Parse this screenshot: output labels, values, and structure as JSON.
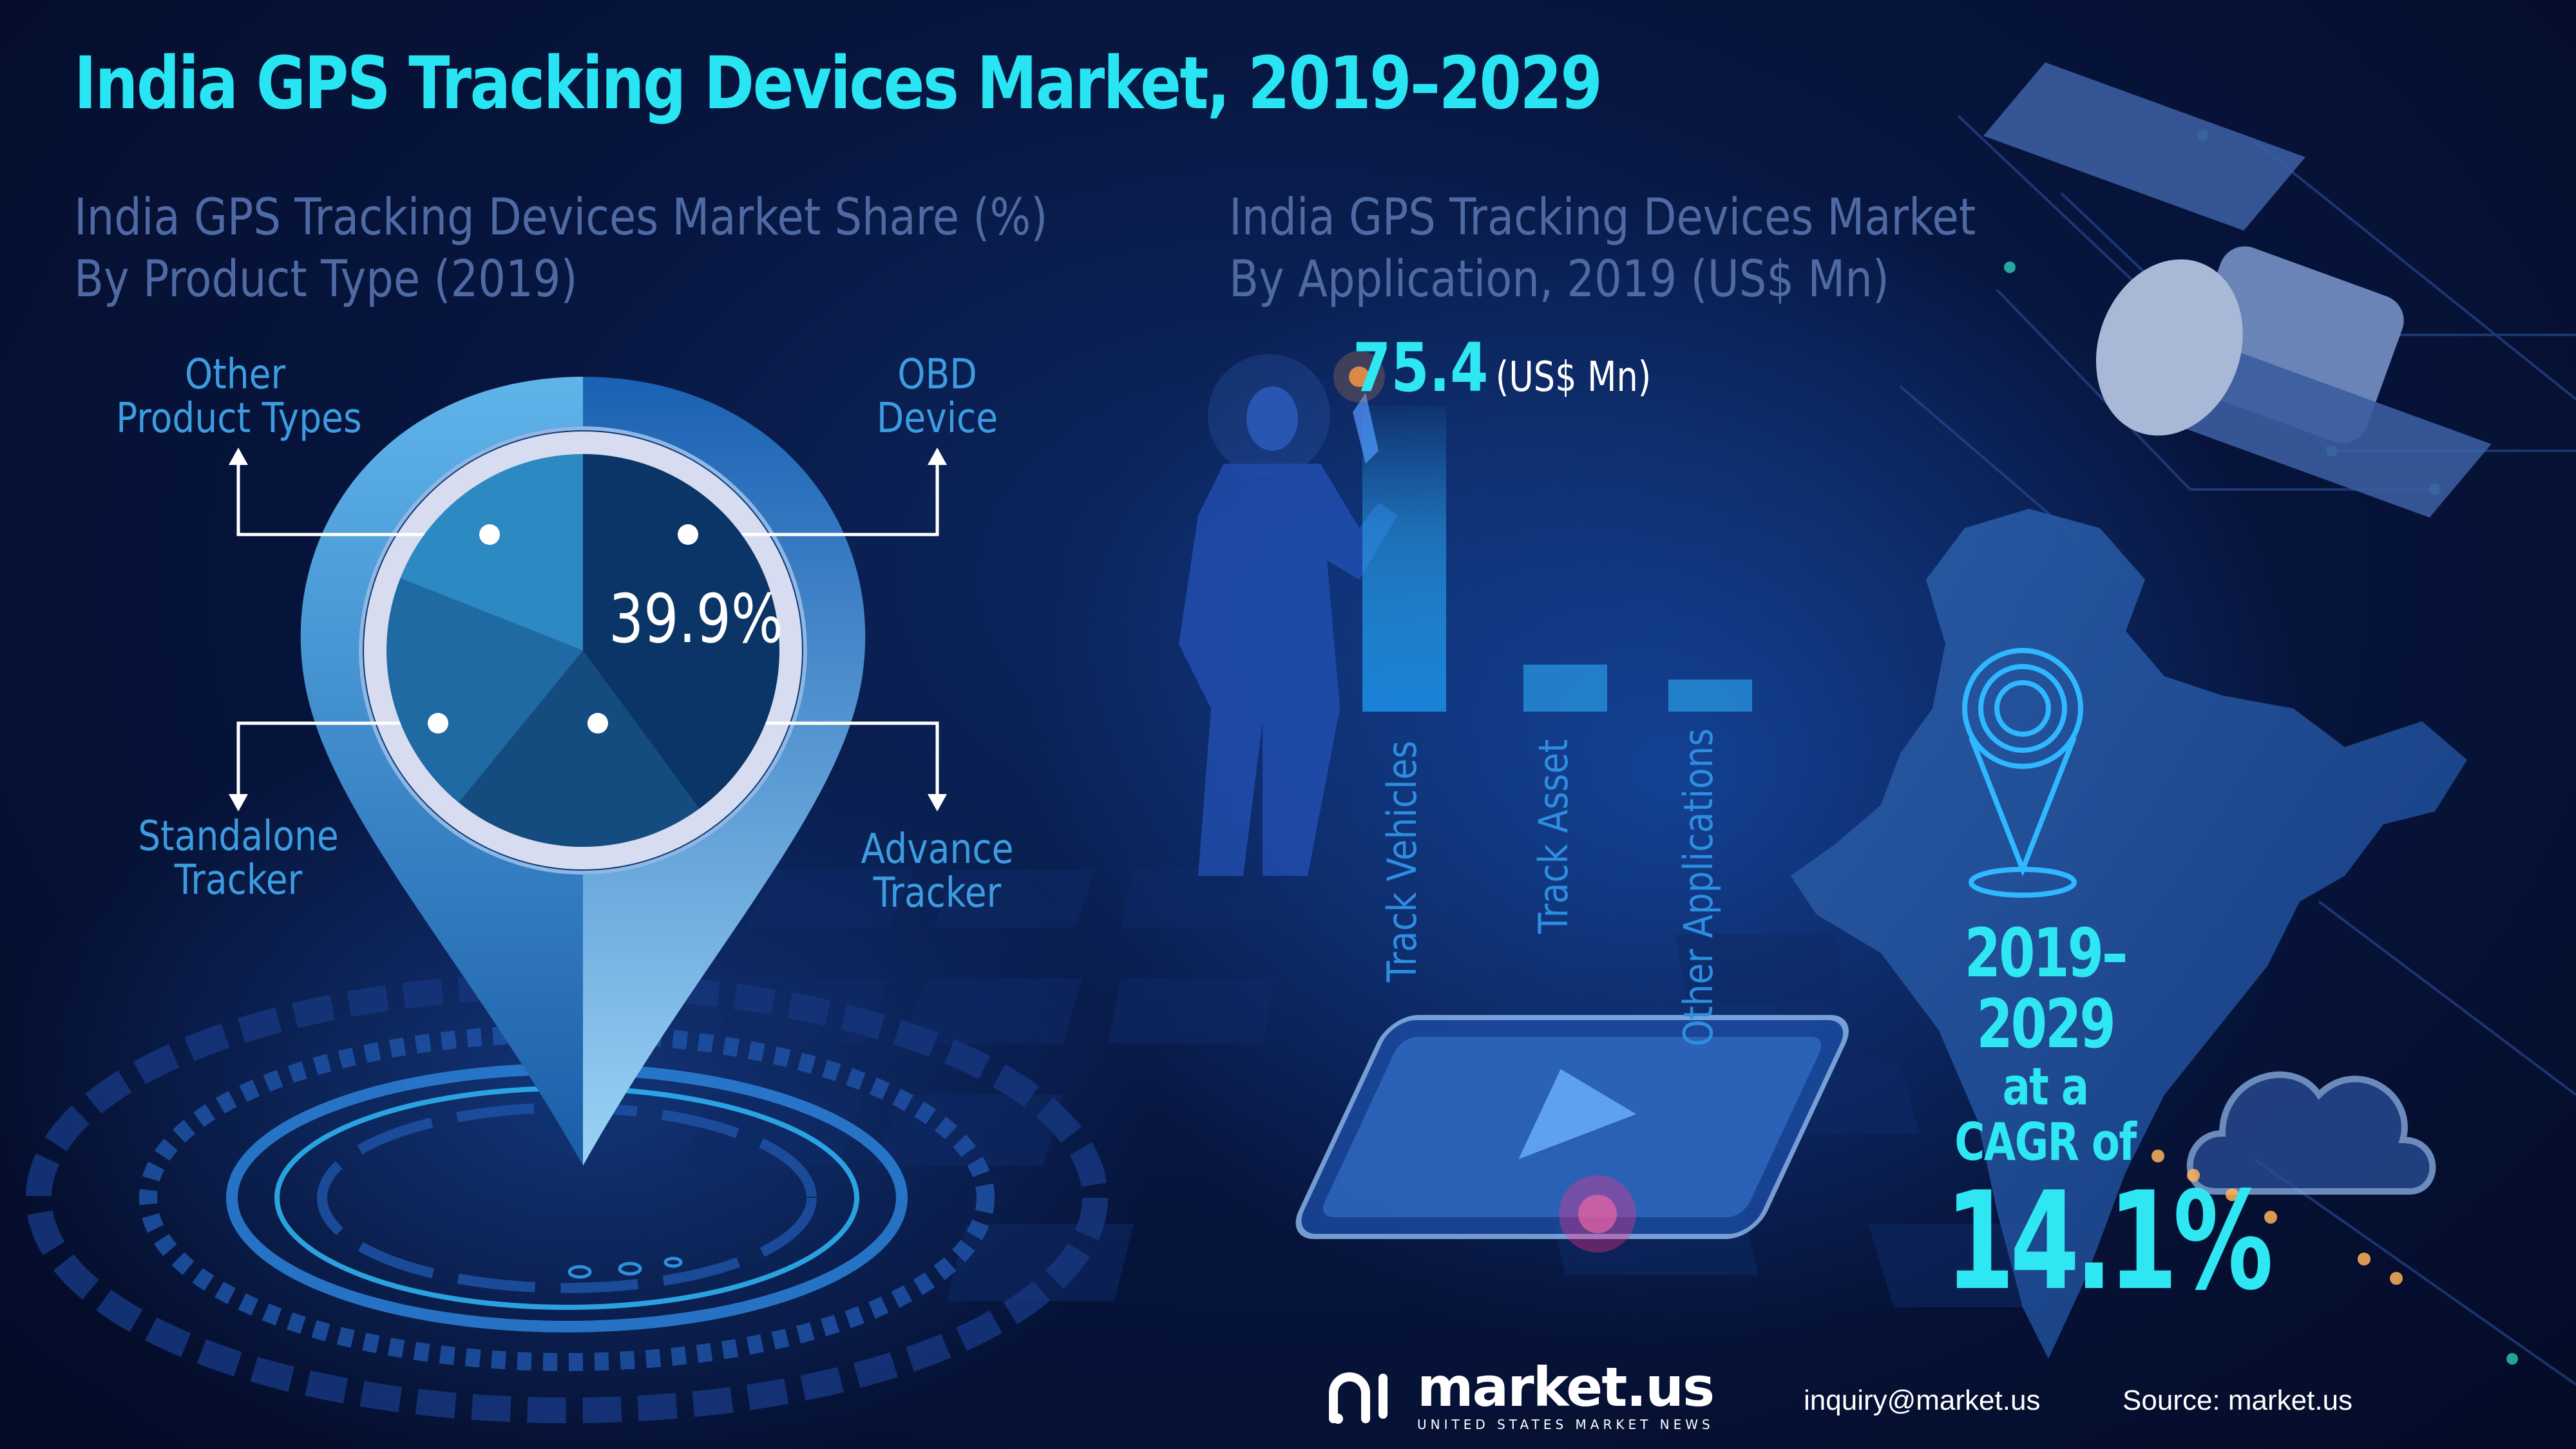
{
  "title": "India GPS Tracking Devices Market, 2019–2029",
  "left_subtitle": [
    "India GPS Tracking Devices Market Share (%)",
    "By Product Type (2019)"
  ],
  "right_subtitle": [
    "India GPS Tracking Devices Market",
    "By Application, 2019 (US$ Mn)"
  ],
  "colors": {
    "accent": "#2fe6f3",
    "label": "#3d9ce0",
    "subtitle": "#4f6aa3",
    "background": "#071640"
  },
  "chart_data": [
    {
      "type": "pie",
      "title": "India GPS Tracking Devices Market Share (%) By Product Type (2019)",
      "categories": [
        "OBD Device",
        "Advance Tracker",
        "Standalone Tracker",
        "Other Product Types"
      ],
      "values": [
        39.9,
        21.0,
        20.1,
        19.0
      ],
      "shown_value": "39.9%",
      "labels": [
        {
          "lines": [
            "OBD",
            "Device"
          ]
        },
        {
          "lines": [
            "Advance",
            "Tracker"
          ]
        },
        {
          "lines": [
            "Standalone",
            "Tracker"
          ]
        },
        {
          "lines": [
            "Other",
            "Product Types"
          ]
        }
      ],
      "slice_colors": [
        "#0a3566",
        "#154c80",
        "#1f6aa3",
        "#2d89c2"
      ]
    },
    {
      "type": "bar",
      "title": "India GPS Tracking Devices Market By Application, 2019 (US$ Mn)",
      "categories": [
        "Track Vehicles",
        "Track Asset",
        "Other Applications"
      ],
      "values": [
        75.4,
        11.6,
        7.9
      ],
      "ylim": [
        0,
        75.4
      ],
      "data_label": {
        "value": "75.4",
        "unit": "(US$ Mn)"
      }
    }
  ],
  "cagr": {
    "years": "2019–2029",
    "text": "at a CAGR of",
    "value": "14.1%"
  },
  "footer": {
    "logo": "market.us",
    "tagline": "UNITED STATES MARKET NEWS",
    "email": "inquiry@market.us",
    "source": "Source: market.us"
  }
}
